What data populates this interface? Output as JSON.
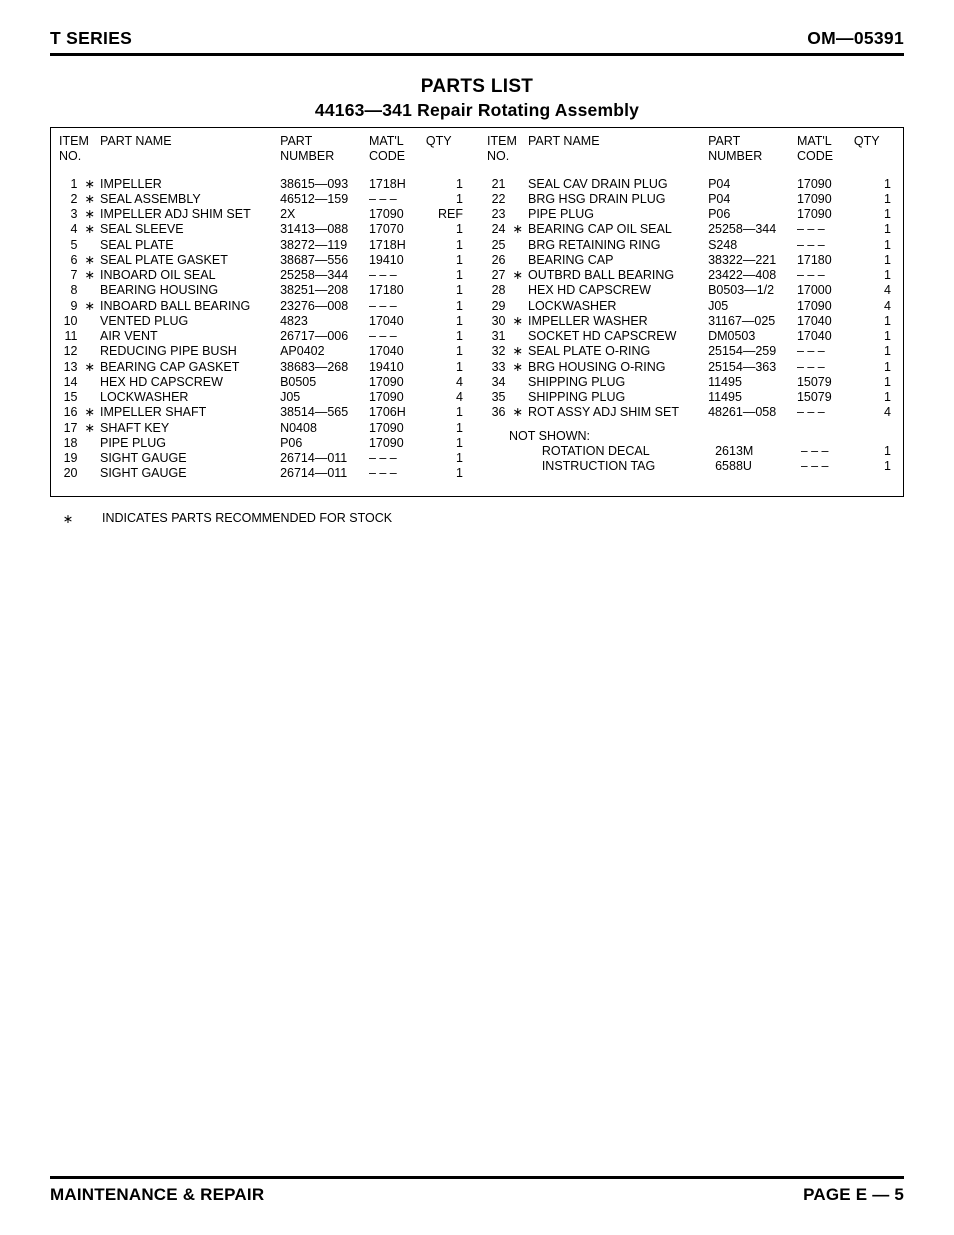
{
  "header": {
    "left": "T SERIES",
    "right": "OM—05391"
  },
  "title": {
    "line1": "PARTS LIST",
    "line2": "44163—341 Repair Rotating Assembly"
  },
  "columns": {
    "headers": {
      "item": "ITEM\nNO.",
      "name": "PART NAME",
      "part": "PART\nNUMBER",
      "matl": "MAT'L\nCODE",
      "qty": "QTY"
    }
  },
  "starGlyph": "∗",
  "dash": "– – –",
  "leftRows": [
    {
      "item": "1",
      "star": true,
      "name": "IMPELLER",
      "part": "38615—093",
      "matl": "1718H",
      "qty": "1"
    },
    {
      "item": "2",
      "star": true,
      "name": "SEAL ASSEMBLY",
      "part": "46512—159",
      "matl": "– – –",
      "qty": "1"
    },
    {
      "item": "3",
      "star": true,
      "name": "IMPELLER ADJ SHIM SET",
      "part": "2X",
      "matl": "17090",
      "qty": "REF"
    },
    {
      "item": "4",
      "star": true,
      "name": "SEAL SLEEVE",
      "part": "31413—088",
      "matl": "17070",
      "qty": "1"
    },
    {
      "item": "5",
      "star": false,
      "name": "SEAL PLATE",
      "part": "38272—119",
      "matl": "1718H",
      "qty": "1"
    },
    {
      "item": "6",
      "star": true,
      "name": "SEAL PLATE GASKET",
      "part": "38687—556",
      "matl": "19410",
      "qty": "1"
    },
    {
      "item": "7",
      "star": true,
      "name": "INBOARD OIL SEAL",
      "part": "25258—344",
      "matl": "– – –",
      "qty": "1"
    },
    {
      "item": "8",
      "star": false,
      "name": "BEARING HOUSING",
      "part": "38251—208",
      "matl": "17180",
      "qty": "1"
    },
    {
      "item": "9",
      "star": true,
      "name": "INBOARD BALL BEARING",
      "part": "23276—008",
      "matl": "– – –",
      "qty": "1"
    },
    {
      "item": "10",
      "star": false,
      "name": "VENTED PLUG",
      "part": "4823",
      "matl": "17040",
      "qty": "1"
    },
    {
      "item": "11",
      "star": false,
      "name": "AIR VENT",
      "part": "26717—006",
      "matl": "– – –",
      "qty": "1"
    },
    {
      "item": "12",
      "star": false,
      "name": "REDUCING PIPE BUSH",
      "part": "AP0402",
      "matl": "17040",
      "qty": "1"
    },
    {
      "item": "13",
      "star": true,
      "name": "BEARING CAP GASKET",
      "part": "38683—268",
      "matl": "19410",
      "qty": "1"
    },
    {
      "item": "14",
      "star": false,
      "name": "HEX HD CAPSCREW",
      "part": "B0505",
      "matl": "17090",
      "qty": "4"
    },
    {
      "item": "15",
      "star": false,
      "name": "LOCKWASHER",
      "part": "J05",
      "matl": "17090",
      "qty": "4"
    },
    {
      "item": "16",
      "star": true,
      "name": "IMPELLER SHAFT",
      "part": "38514—565",
      "matl": "1706H",
      "qty": "1"
    },
    {
      "item": "17",
      "star": true,
      "name": "SHAFT KEY",
      "part": "N0408",
      "matl": "17090",
      "qty": "1"
    },
    {
      "item": "18",
      "star": false,
      "name": "PIPE PLUG",
      "part": "P06",
      "matl": "17090",
      "qty": "1"
    },
    {
      "item": "19",
      "star": false,
      "name": "SIGHT GAUGE",
      "part": "26714—011",
      "matl": "– – –",
      "qty": "1"
    },
    {
      "item": "20",
      "star": false,
      "name": "SIGHT GAUGE",
      "part": "26714—011",
      "matl": "– – –",
      "qty": "1"
    }
  ],
  "rightRows": [
    {
      "item": "21",
      "star": false,
      "name": "SEAL CAV DRAIN PLUG",
      "part": "P04",
      "matl": "17090",
      "qty": "1"
    },
    {
      "item": "22",
      "star": false,
      "name": "BRG HSG DRAIN PLUG",
      "part": "P04",
      "matl": "17090",
      "qty": "1"
    },
    {
      "item": "23",
      "star": false,
      "name": "PIPE PLUG",
      "part": "P06",
      "matl": "17090",
      "qty": "1"
    },
    {
      "item": "24",
      "star": true,
      "name": "BEARING CAP OIL SEAL",
      "part": "25258—344",
      "matl": "– – –",
      "qty": "1"
    },
    {
      "item": "25",
      "star": false,
      "name": "BRG RETAINING RING",
      "part": "S248",
      "matl": "– – –",
      "qty": "1"
    },
    {
      "item": "26",
      "star": false,
      "name": "BEARING CAP",
      "part": "38322—221",
      "matl": "17180",
      "qty": "1"
    },
    {
      "item": "27",
      "star": true,
      "name": "OUTBRD BALL BEARING",
      "part": "23422—408",
      "matl": "– – –",
      "qty": "1"
    },
    {
      "item": "28",
      "star": false,
      "name": "HEX HD CAPSCREW",
      "part": "B0503—1/2",
      "matl": "17000",
      "qty": "4"
    },
    {
      "item": "29",
      "star": false,
      "name": "LOCKWASHER",
      "part": "J05",
      "matl": "17090",
      "qty": "4"
    },
    {
      "item": "30",
      "star": true,
      "name": "IMPELLER WASHER",
      "part": "31167—025",
      "matl": "17040",
      "qty": "1"
    },
    {
      "item": "31",
      "star": false,
      "name": "SOCKET HD CAPSCREW",
      "part": "DM0503",
      "matl": "17040",
      "qty": "1"
    },
    {
      "item": "32",
      "star": true,
      "name": "SEAL PLATE O-RING",
      "part": "25154—259",
      "matl": "– – –",
      "qty": "1"
    },
    {
      "item": "33",
      "star": true,
      "name": "BRG HOUSING O-RING",
      "part": "25154—363",
      "matl": "– – –",
      "qty": "1"
    },
    {
      "item": "34",
      "star": false,
      "name": "SHIPPING PLUG",
      "part": "11495",
      "matl": "15079",
      "qty": "1"
    },
    {
      "item": "35",
      "star": false,
      "name": "SHIPPING PLUG",
      "part": "11495",
      "matl": "15079",
      "qty": "1"
    },
    {
      "item": "36",
      "star": true,
      "name": "ROT ASSY ADJ SHIM SET",
      "part": "48261—058",
      "matl": "– – –",
      "qty": "4"
    }
  ],
  "notShown": {
    "label": "NOT SHOWN:",
    "rows": [
      {
        "name": "ROTATION DECAL",
        "part": "2613M",
        "matl": "– – –",
        "qty": "1"
      },
      {
        "name": "INSTRUCTION TAG",
        "part": "6588U",
        "matl": "– – –",
        "qty": "1"
      }
    ]
  },
  "footnote": "INDICATES PARTS RECOMMENDED FOR STOCK",
  "footer": {
    "left": "MAINTENANCE & REPAIR",
    "right": "PAGE E — 5"
  }
}
